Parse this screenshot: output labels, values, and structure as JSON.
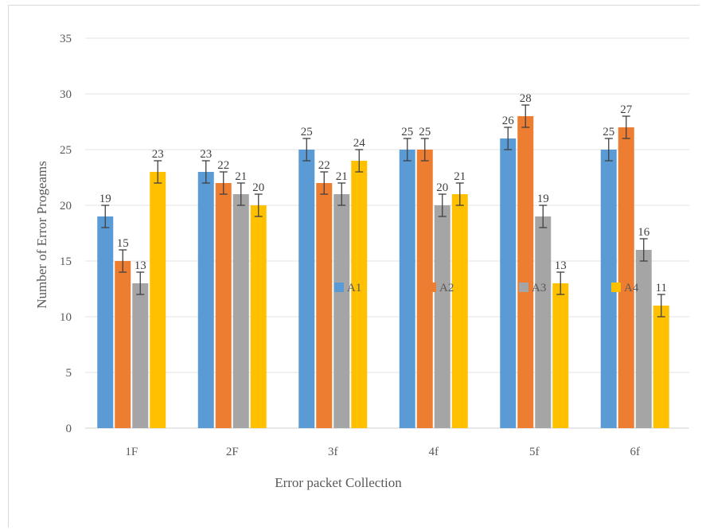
{
  "chart_data": {
    "type": "bar",
    "categories": [
      "1F",
      "2F",
      "3f",
      "4f",
      "5f",
      "6f"
    ],
    "series": [
      {
        "name": "A1",
        "color": "#5B9BD5",
        "values": [
          19,
          23,
          25,
          25,
          26,
          25
        ]
      },
      {
        "name": "A2",
        "color": "#ED7D31",
        "values": [
          15,
          22,
          22,
          25,
          28,
          27
        ]
      },
      {
        "name": "A3",
        "color": "#A5A5A5",
        "values": [
          13,
          21,
          21,
          20,
          19,
          16
        ]
      },
      {
        "name": "A4",
        "color": "#FFC000",
        "values": [
          23,
          20,
          24,
          21,
          13,
          11
        ]
      }
    ],
    "error_bars": true,
    "xlabel": "Error packet Collection",
    "ylabel": "Number of Error Progeams",
    "ylim": [
      0,
      35
    ],
    "yticks": [
      0,
      5,
      10,
      15,
      20,
      25,
      30,
      35
    ],
    "grid": true,
    "legend": "center"
  }
}
